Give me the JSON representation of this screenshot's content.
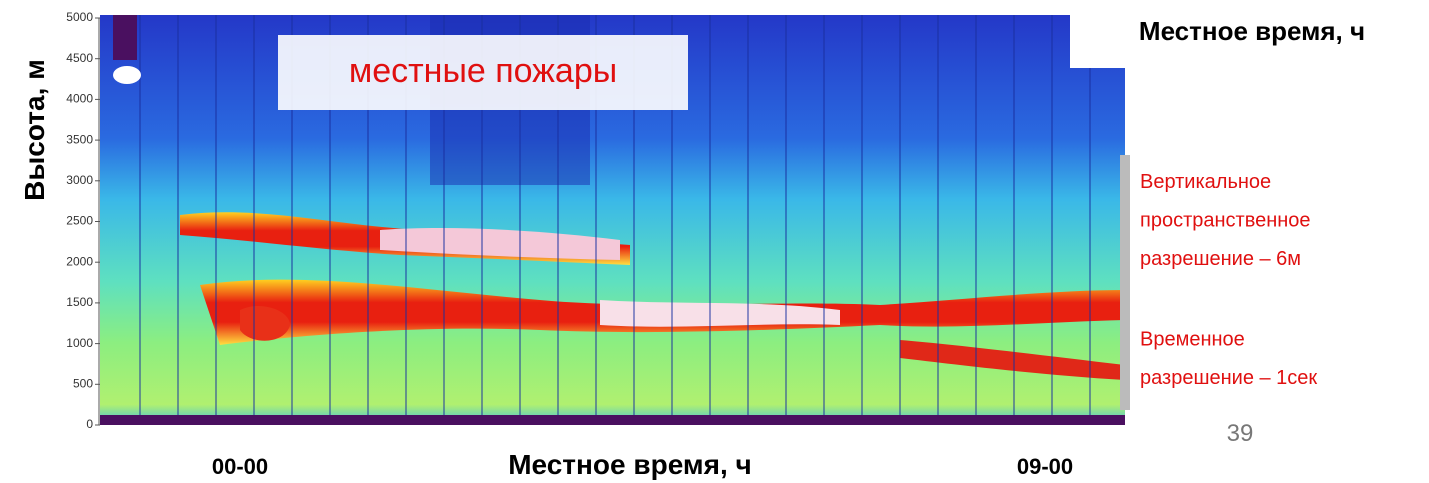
{
  "slide": {
    "y_axis_label": "Высота, м",
    "ylim": [
      0,
      5000
    ],
    "yticks": [
      0,
      500,
      1000,
      1500,
      2000,
      2500,
      3000,
      3500,
      4000,
      4500,
      5000
    ],
    "overlay_label": "местные пожары",
    "top_time_label": "Местное время, ч",
    "bottom_time_label": "Местное время, ч",
    "x_start_label": "00-00",
    "x_end_label": "09-00",
    "notes": [
      [
        "Вертикальное",
        "пространственное",
        "разрешение – 6м"
      ],
      [
        "Временное",
        "разрешение – 1сек"
      ]
    ],
    "page_number": "39"
  }
}
